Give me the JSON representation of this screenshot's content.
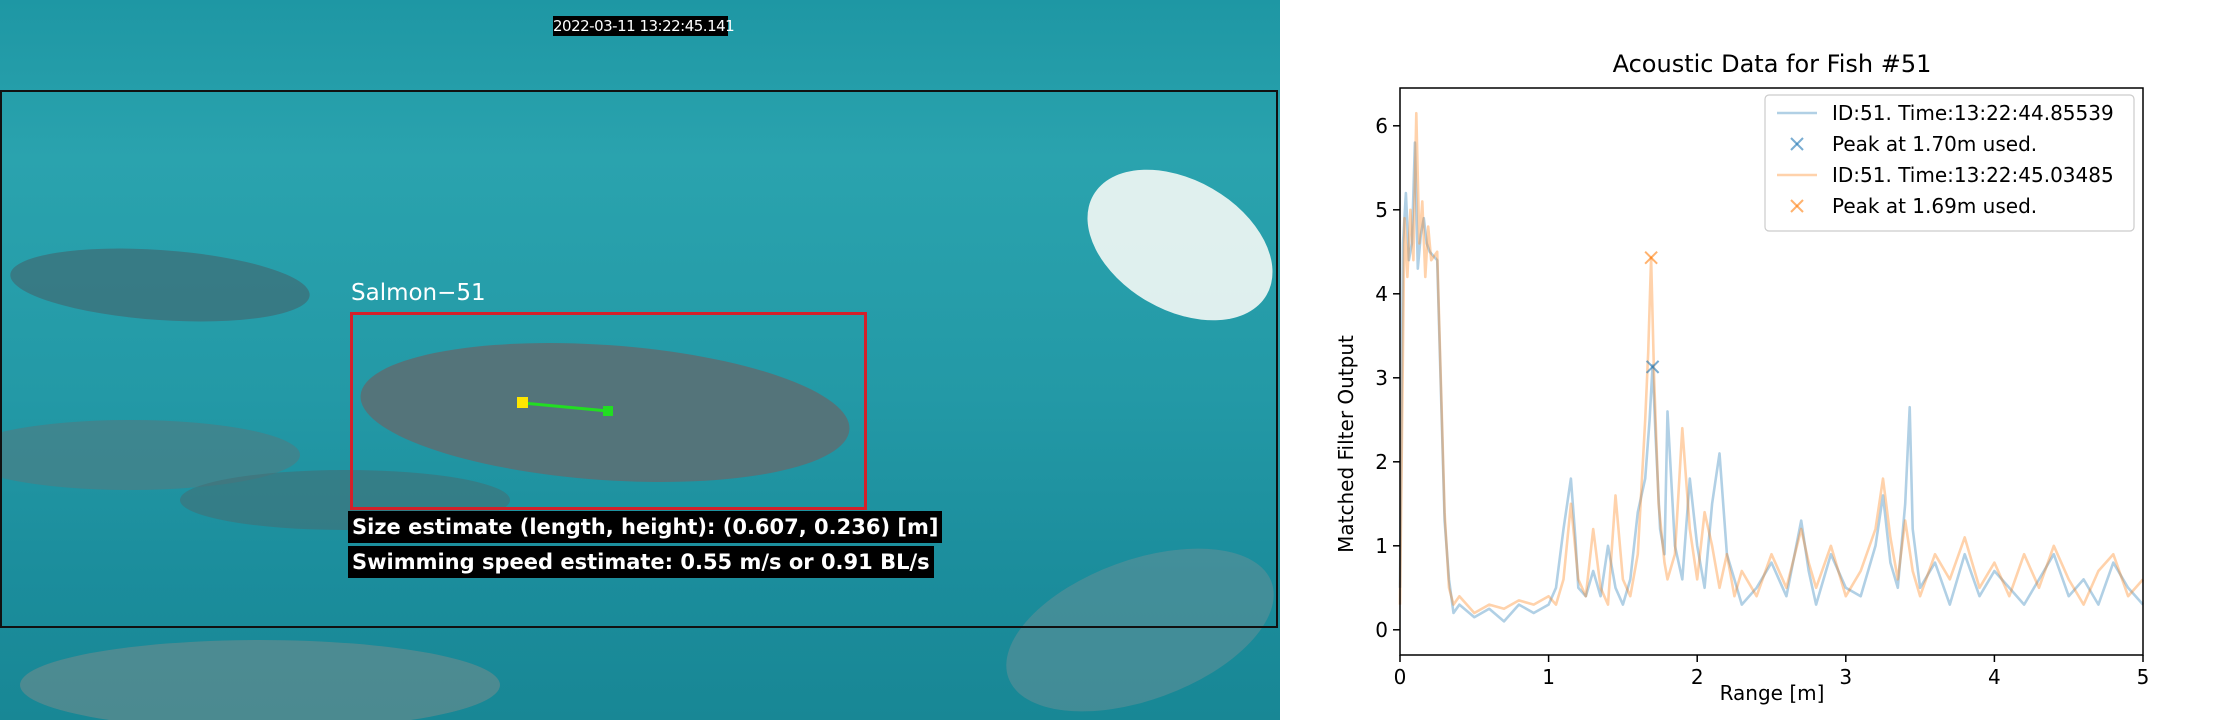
{
  "video": {
    "timestamp": "2022-03-11 13:22:45.141",
    "detection_label": "Salmon−51",
    "size_text": "Size estimate (length, height): (0.607, 0.236) [m]",
    "speed_text": "Swimming speed estimate: 0.55 m/s or 0.91 BL/s",
    "colors": {
      "bbox": "#d4202a",
      "track_line": "#22dd22",
      "track_start": "#ffe600",
      "track_end": "#22dd22"
    }
  },
  "chart_data": {
    "type": "line",
    "title": "Acoustic Data for Fish #51",
    "xlabel": "Range [m]",
    "ylabel": "Matched Filter Output",
    "xlim": [
      0,
      5
    ],
    "ylim": [
      -0.3,
      6.45
    ],
    "xticks": [
      "0",
      "1",
      "2",
      "3",
      "4",
      "5"
    ],
    "yticks": [
      "0",
      "1",
      "2",
      "3",
      "4",
      "5",
      "6"
    ],
    "grid": false,
    "legend_position": "top-right",
    "series": [
      {
        "name": "ID:51. Time:13:22:44.85539",
        "color": "#1f77b4",
        "x": [
          0,
          0.02,
          0.04,
          0.06,
          0.08,
          0.1,
          0.12,
          0.14,
          0.16,
          0.18,
          0.2,
          0.25,
          0.3,
          0.33,
          0.36,
          0.4,
          0.5,
          0.6,
          0.7,
          0.8,
          0.9,
          1.0,
          1.05,
          1.1,
          1.15,
          1.18,
          1.2,
          1.25,
          1.3,
          1.35,
          1.4,
          1.45,
          1.5,
          1.55,
          1.6,
          1.65,
          1.68,
          1.7,
          1.72,
          1.75,
          1.78,
          1.8,
          1.85,
          1.9,
          1.95,
          2.0,
          2.05,
          2.1,
          2.15,
          2.2,
          2.25,
          2.3,
          2.4,
          2.5,
          2.6,
          2.7,
          2.75,
          2.8,
          2.9,
          3.0,
          3.1,
          3.2,
          3.25,
          3.3,
          3.35,
          3.4,
          3.43,
          3.45,
          3.5,
          3.6,
          3.7,
          3.8,
          3.9,
          4.0,
          4.1,
          4.2,
          4.3,
          4.4,
          4.5,
          4.6,
          4.7,
          4.8,
          4.9,
          5.0
        ],
        "y": [
          0.5,
          4.6,
          5.2,
          4.4,
          4.6,
          5.8,
          4.3,
          4.7,
          4.9,
          4.6,
          4.5,
          4.4,
          1.3,
          0.6,
          0.2,
          0.3,
          0.15,
          0.25,
          0.1,
          0.3,
          0.2,
          0.3,
          0.5,
          1.2,
          1.8,
          1.1,
          0.5,
          0.4,
          0.7,
          0.4,
          1.0,
          0.5,
          0.3,
          0.6,
          1.4,
          1.8,
          2.5,
          3.15,
          2.3,
          1.2,
          0.9,
          2.6,
          1.0,
          0.6,
          1.8,
          1.0,
          0.5,
          1.5,
          2.1,
          0.9,
          0.6,
          0.3,
          0.5,
          0.8,
          0.4,
          1.3,
          0.7,
          0.3,
          0.9,
          0.5,
          0.4,
          1.0,
          1.6,
          0.8,
          0.5,
          1.5,
          2.65,
          1.2,
          0.5,
          0.8,
          0.3,
          0.9,
          0.4,
          0.7,
          0.5,
          0.3,
          0.6,
          0.9,
          0.4,
          0.6,
          0.3,
          0.8,
          0.5,
          0.3
        ],
        "peak": {
          "x": 1.7,
          "y": 3.13
        }
      },
      {
        "name": "ID:51. Time:13:22:45.03485",
        "color": "#ff7f0e",
        "x": [
          0,
          0.03,
          0.05,
          0.07,
          0.09,
          0.11,
          0.13,
          0.15,
          0.17,
          0.19,
          0.21,
          0.25,
          0.3,
          0.33,
          0.36,
          0.4,
          0.5,
          0.6,
          0.7,
          0.8,
          0.9,
          1.0,
          1.05,
          1.1,
          1.15,
          1.2,
          1.25,
          1.3,
          1.35,
          1.4,
          1.45,
          1.5,
          1.55,
          1.6,
          1.65,
          1.67,
          1.69,
          1.71,
          1.74,
          1.78,
          1.8,
          1.85,
          1.9,
          1.95,
          2.0,
          2.05,
          2.1,
          2.15,
          2.2,
          2.25,
          2.3,
          2.4,
          2.5,
          2.6,
          2.7,
          2.75,
          2.8,
          2.9,
          3.0,
          3.1,
          3.2,
          3.25,
          3.3,
          3.35,
          3.4,
          3.45,
          3.5,
          3.6,
          3.7,
          3.8,
          3.9,
          4.0,
          4.1,
          4.2,
          4.3,
          4.4,
          4.5,
          4.6,
          4.7,
          4.8,
          4.9,
          5.0
        ],
        "y": [
          0.3,
          4.9,
          4.2,
          5.0,
          4.4,
          6.15,
          4.6,
          5.1,
          4.2,
          4.8,
          4.4,
          4.5,
          1.4,
          0.5,
          0.3,
          0.4,
          0.2,
          0.3,
          0.25,
          0.35,
          0.3,
          0.4,
          0.3,
          0.6,
          1.5,
          0.6,
          0.4,
          1.2,
          0.5,
          0.3,
          1.6,
          0.6,
          0.4,
          0.9,
          2.5,
          3.3,
          4.43,
          3.0,
          1.5,
          0.8,
          0.6,
          0.9,
          2.4,
          1.2,
          0.6,
          1.4,
          1.0,
          0.5,
          0.9,
          0.4,
          0.7,
          0.4,
          0.9,
          0.5,
          1.2,
          0.8,
          0.5,
          1.0,
          0.4,
          0.7,
          1.2,
          1.8,
          1.1,
          0.6,
          1.3,
          0.7,
          0.4,
          0.9,
          0.6,
          1.1,
          0.5,
          0.8,
          0.4,
          0.9,
          0.5,
          1.0,
          0.6,
          0.3,
          0.7,
          0.9,
          0.4,
          0.6
        ],
        "peak": {
          "x": 1.69,
          "y": 4.43
        }
      }
    ],
    "legend": [
      {
        "label": "ID:51. Time:13:22:44.85539",
        "kind": "line",
        "color": "#1f77b4"
      },
      {
        "label": "Peak at 1.70m used.",
        "kind": "marker",
        "color": "#1f77b4"
      },
      {
        "label": "ID:51. Time:13:22:45.03485",
        "kind": "line",
        "color": "#ff7f0e"
      },
      {
        "label": "Peak at 1.69m used.",
        "kind": "marker",
        "color": "#ff7f0e"
      }
    ]
  }
}
